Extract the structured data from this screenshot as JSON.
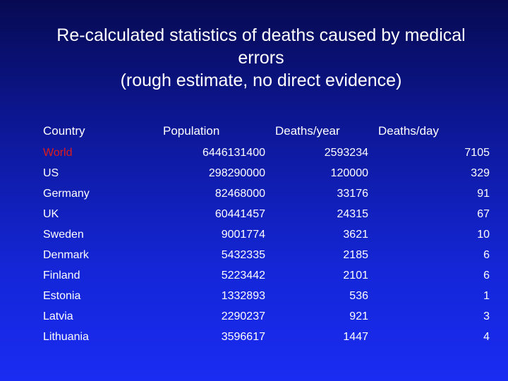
{
  "title": {
    "line1": "Re-calculated statistics of deaths caused by medical",
    "line2": "errors",
    "line3": "(rough estimate, no direct evidence)"
  },
  "table": {
    "headers": [
      "Country",
      "Population",
      "Deaths/year",
      "Deaths/day"
    ],
    "rows": [
      {
        "country": "World",
        "population": "6446131400",
        "deaths_year": "2593234",
        "deaths_day": "7105",
        "highlight_color": "#e01b1b"
      },
      {
        "country": "US",
        "population": "298290000",
        "deaths_year": "120000",
        "deaths_day": "329"
      },
      {
        "country": "Germany",
        "population": "82468000",
        "deaths_year": "33176",
        "deaths_day": "91"
      },
      {
        "country": "UK",
        "population": "60441457",
        "deaths_year": "24315",
        "deaths_day": "67"
      },
      {
        "country": "Sweden",
        "population": "9001774",
        "deaths_year": "3621",
        "deaths_day": "10"
      },
      {
        "country": "Denmark",
        "population": "5432335",
        "deaths_year": "2185",
        "deaths_day": "6"
      },
      {
        "country": "Finland",
        "population": "5223442",
        "deaths_year": "2101",
        "deaths_day": "6"
      },
      {
        "country": "Estonia",
        "population": "1332893",
        "deaths_year": "536",
        "deaths_day": "1"
      },
      {
        "country": "Latvia",
        "population": "2290237",
        "deaths_year": "921",
        "deaths_day": "3"
      },
      {
        "country": "Lithuania",
        "population": "3596617",
        "deaths_year": "1447",
        "deaths_day": "4"
      }
    ]
  }
}
